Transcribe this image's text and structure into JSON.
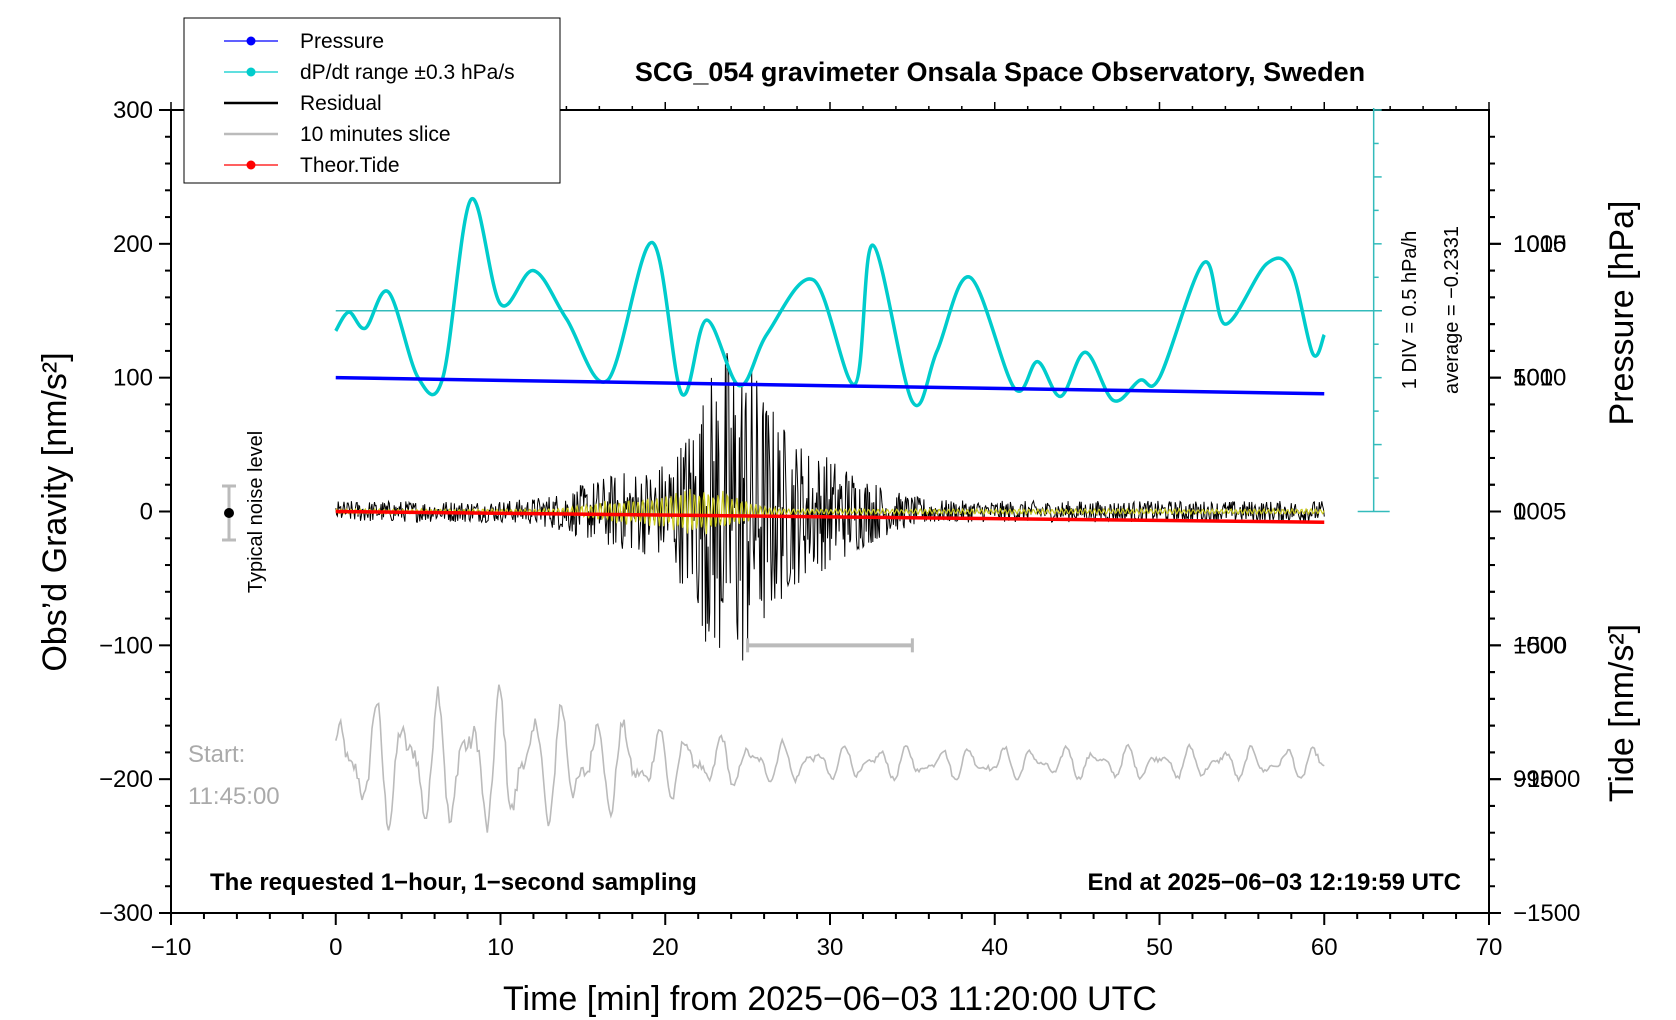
{
  "chart_data": {
    "type": "line",
    "title": "SCG_054 gravimeter Onsala Space Observatory, Sweden",
    "xlabel": "Time [min] from 2025−06−03 11:20:00 UTC",
    "ylabel": "Obs’d Gravity [nm/s²]",
    "ylabel_right_top": "Pressure [hPa]",
    "ylabel_right_bottom": "Tide [nm/s²]",
    "xlim": [
      -10,
      70
    ],
    "ylim": [
      -300,
      300
    ],
    "pressure_range": [
      990,
      1020
    ],
    "tide_range": [
      -1500,
      1500
    ],
    "grid": false,
    "legend_position": "top-left",
    "x_ticks": [
      "−10",
      "0",
      "10",
      "20",
      "30",
      "40",
      "50",
      "60",
      "70"
    ],
    "y_ticks": [
      "300",
      "200",
      "100",
      "0",
      "−100",
      "−200",
      "−300"
    ],
    "pressure_ticks": [
      "1015",
      "1010",
      "1005",
      "1000",
      "995"
    ],
    "tide_ticks": [
      "1000",
      "500",
      "0",
      "−500",
      "−1000",
      "−1500"
    ],
    "legend": [
      {
        "label": "Pressure",
        "color": "#0000ff",
        "marker": true
      },
      {
        "label": "dP/dt range ±0.3 hPa/s",
        "color": "#00cccc",
        "marker": true
      },
      {
        "label": "Residual",
        "color": "#000000",
        "marker": false
      },
      {
        "label": "10 minutes slice",
        "color": "#bbbbbb",
        "marker": false
      },
      {
        "label": "Theor.Tide",
        "color": "#ff0000",
        "marker": true
      }
    ],
    "series": [
      {
        "name": "Pressure",
        "color": "#0000ff",
        "axis": "pressure",
        "x": [
          0,
          10,
          20,
          30,
          40,
          50,
          60
        ],
        "y": [
          1010.0,
          1009.9,
          1009.8,
          1009.7,
          1009.6,
          1009.5,
          1009.4
        ]
      },
      {
        "name": "dP/dt range ±0.3 hPa/s",
        "color": "#00cccc",
        "axis": "gravity",
        "x": [
          0,
          0.8,
          1.8,
          3.2,
          5,
          6.5,
          8.2,
          10,
          12,
          14,
          16.5,
          19.2,
          21,
          22.5,
          24.5,
          26.2,
          29,
          31.5,
          32.6,
          35,
          36.5,
          38.5,
          41.2,
          42.6,
          44,
          45.5,
          47.2,
          48.8,
          50,
          52.7,
          54,
          56.5,
          58,
          59.3,
          60
        ],
        "y": [
          135,
          149,
          137,
          164,
          100,
          100,
          233,
          155,
          180,
          144,
          98,
          201,
          88,
          143,
          94,
          133,
          173,
          95,
          199,
          82,
          120,
          175,
          92,
          112,
          86,
          119,
          83,
          98,
          100,
          186,
          140,
          185,
          180,
          118,
          132
        ]
      },
      {
        "name": "Residual",
        "color": "#000000",
        "axis": "gravity",
        "x_range": [
          0,
          60
        ],
        "peak": [
          -125,
          150
        ]
      },
      {
        "name": "10 minutes slice",
        "color": "#bbbbbb",
        "axis": "gravity",
        "x_range": [
          0,
          60
        ]
      },
      {
        "name": "Theor.Tide",
        "color": "#ff0000",
        "axis": "tide",
        "x": [
          0,
          30,
          60
        ],
        "y": [
          0,
          -20,
          -40
        ]
      }
    ],
    "annotations": {
      "noise_label": "Typical noise level",
      "div_label": "1 DIV = 0.5 hPa/h",
      "average_label": "average = −0.2331",
      "start_label": "Start:",
      "start_time": "11:45:00",
      "bottom_left": "The requested 1−hour, 1−second sampling",
      "bottom_right": "End at 2025−06−03 12:19:59 UTC",
      "slice_bar_minutes": [
        25,
        35
      ]
    }
  }
}
